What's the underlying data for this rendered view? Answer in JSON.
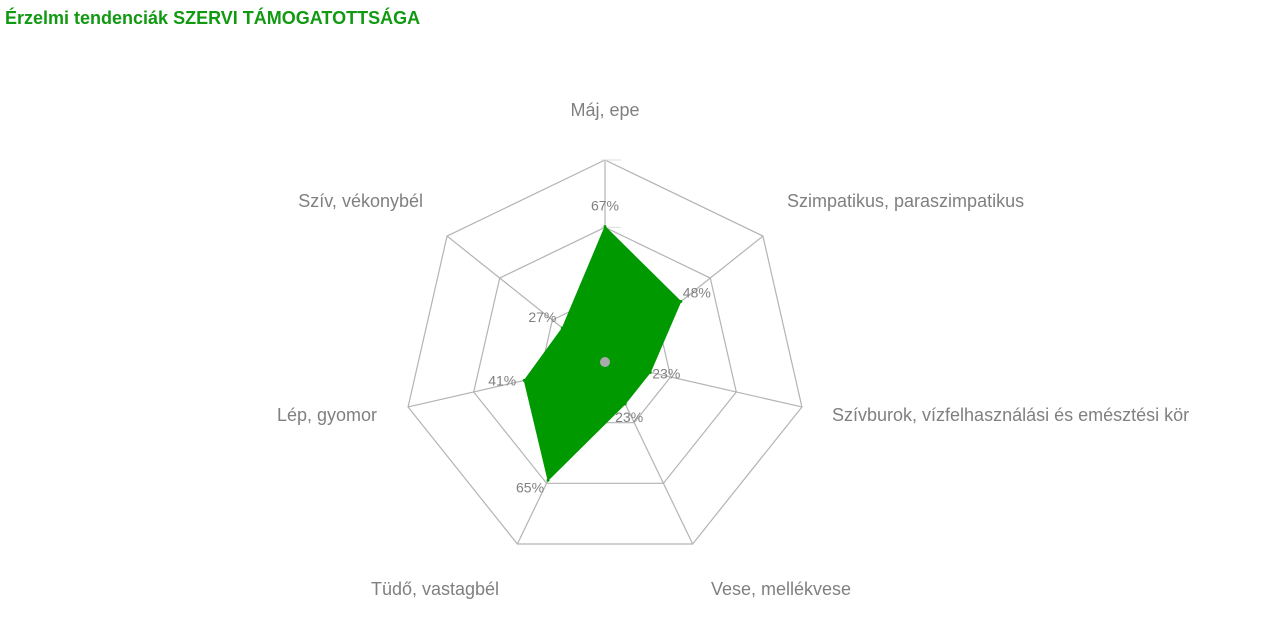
{
  "title": "Érzelmi tendenciák SZERVI TÁMOGATOTTSÁGA",
  "colors": {
    "title": "#119911",
    "series_fill": "#009900",
    "grid": "#b3b3b3",
    "labels": "#808080"
  },
  "chart_data": {
    "type": "radar",
    "title": "Érzelmi tendenciák SZERVI TÁMOGATOTTSÁGA",
    "categories": [
      "Máj, epe",
      "Szimpatikus, paraszimpatikus",
      "Szívburok, vízfelhasználási és emésztési kör",
      "Vese, mellékvese",
      "Tüdő, vastagbél",
      "Lép, gyomor",
      "Szív, vékonybél"
    ],
    "series": [
      {
        "values": [
          67,
          48,
          23,
          23,
          65,
          41,
          27
        ],
        "data_labels": [
          "67%",
          "48%",
          "23%",
          "23%",
          "65%",
          "41%",
          "27%"
        ]
      }
    ],
    "rlim": [
      0,
      100
    ],
    "grid": true,
    "legend": "none"
  }
}
